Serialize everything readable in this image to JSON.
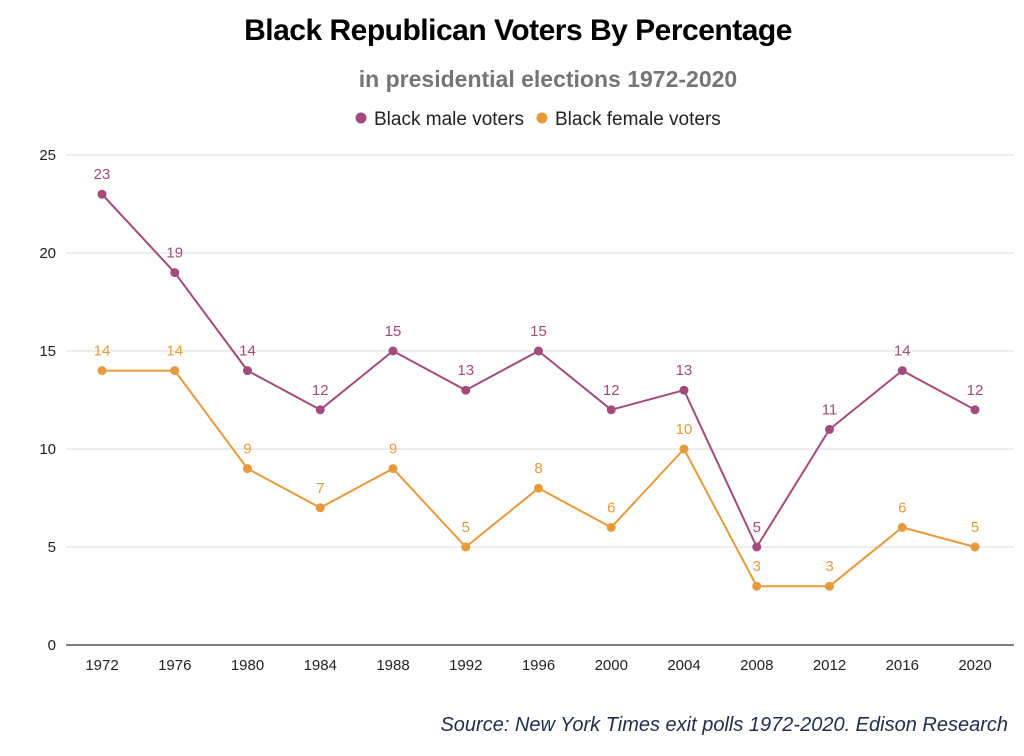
{
  "chart_data": {
    "type": "line",
    "title": "Black Republican Voters By Percentage",
    "subtitle": "in presidential elections 1972-2020",
    "source": "Source: New York Times exit polls 1972-2020. Edison Research",
    "xlabel": "",
    "ylabel": "",
    "x": [
      "1972",
      "1976",
      "1980",
      "1984",
      "1988",
      "1992",
      "1996",
      "2000",
      "2004",
      "2008",
      "2012",
      "2016",
      "2020"
    ],
    "ylim": [
      0,
      25
    ],
    "yticks": [
      0,
      5,
      10,
      15,
      20,
      25
    ],
    "grid": true,
    "legend_position": "top-center",
    "series": [
      {
        "name": "Black male voters",
        "color": "#a24b7c",
        "values": [
          23,
          19,
          14,
          12,
          15,
          13,
          15,
          12,
          13,
          5,
          11,
          14,
          12
        ]
      },
      {
        "name": "Black female voters",
        "color": "#e69a3c",
        "values": [
          14,
          14,
          9,
          7,
          9,
          5,
          8,
          6,
          10,
          3,
          3,
          6,
          5
        ]
      }
    ]
  }
}
